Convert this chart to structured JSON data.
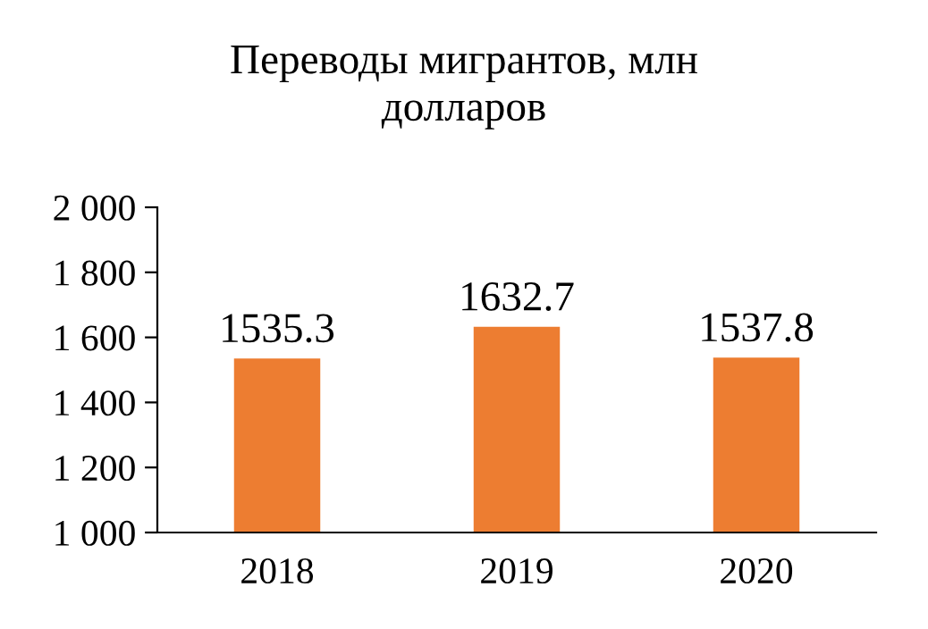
{
  "chart_data": {
    "type": "bar",
    "title": "Переводы мигрантов, млн\nдолларов",
    "categories": [
      "2018",
      "2019",
      "2020"
    ],
    "values": [
      1535.3,
      1632.7,
      1537.8
    ],
    "color": "#ed7d31",
    "data_labels": true,
    "ylim": [
      1000,
      2000
    ],
    "yticks": [
      {
        "value": 1000,
        "label": "1 000"
      },
      {
        "value": 1200,
        "label": "1 200"
      },
      {
        "value": 1400,
        "label": "1 400"
      },
      {
        "value": 1600,
        "label": "1 600"
      },
      {
        "value": 1800,
        "label": "1 800"
      },
      {
        "value": 2000,
        "label": "2 000"
      }
    ],
    "grid": false,
    "legend": false
  }
}
